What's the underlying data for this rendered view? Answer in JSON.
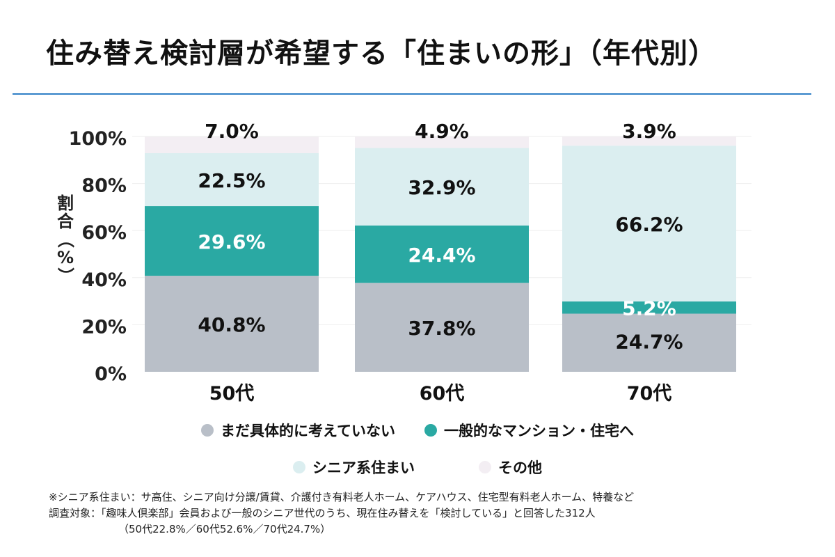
{
  "title": "住み替え検討層が希望する「住まいの形」（年代別）",
  "chart_data": {
    "type": "bar",
    "stacked": true,
    "percent": true,
    "ylabel": "割合（%）",
    "ylim": [
      0,
      100
    ],
    "yticks": [
      "0%",
      "20%",
      "40%",
      "60%",
      "80%",
      "100%"
    ],
    "categories": [
      "50代",
      "60代",
      "70代"
    ],
    "series": [
      {
        "name": "まだ具体的に考えていない",
        "values": [
          40.8,
          37.8,
          24.7
        ],
        "labels": [
          "40.8%",
          "37.8%",
          "24.7%"
        ],
        "color": "#b9bfc8",
        "text_color": "#111111"
      },
      {
        "name": "一般的なマンション・住宅へ",
        "values": [
          29.6,
          24.4,
          5.2
        ],
        "labels": [
          "29.6%",
          "24.4%",
          "5.2%"
        ],
        "color": "#2aa9a3",
        "text_color": "#ffffff"
      },
      {
        "name": "シニア系住まい",
        "values": [
          22.5,
          32.9,
          66.2
        ],
        "labels": [
          "22.5%",
          "32.9%",
          "66.2%"
        ],
        "color": "#dbeef0",
        "text_color": "#111111"
      },
      {
        "name": "その他",
        "values": [
          7.0,
          4.9,
          3.9
        ],
        "labels": [
          "7.0%",
          "4.9%",
          "3.9%"
        ],
        "color": "#f3eef3",
        "text_color": "#111111"
      }
    ],
    "legend": "bottom",
    "grid": true
  },
  "notes": [
    "※シニア系住まい：サ高住、シニア向け分譲/賃貸、介護付き有料老人ホーム、ケアハウス、住宅型有料老人ホーム、特養など",
    "調査対象：「趣味人倶楽部」会員および一般のシニア世代のうち、現在住み替えを「検討している」と回答した312人",
    "（50代22.8%／60代52.6%／70代24.7%）"
  ]
}
